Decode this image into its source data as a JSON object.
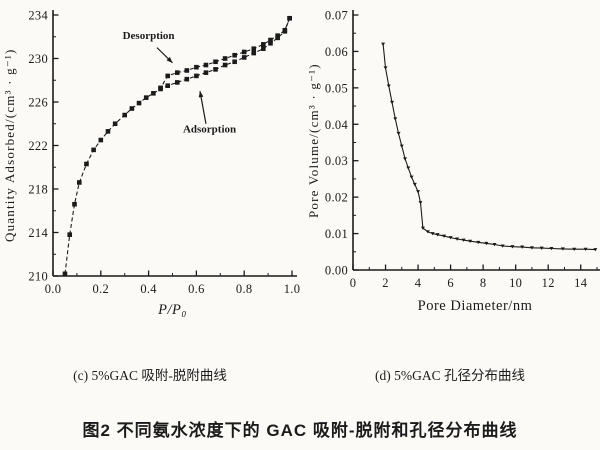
{
  "figure": {
    "panel_c_caption": "(c) 5%GAC 吸附-脱附曲线",
    "panel_d_caption": "(d) 5%GAC 孔径分布曲线",
    "main_caption": "图2  不同氨水浓度下的 GAC 吸附-脱附和孔径分布曲线",
    "ink_color": "#1b1b1b",
    "background_color": "#fbfaf7"
  },
  "chart_data": [
    {
      "type": "line",
      "panel": "c",
      "title": "",
      "xlabel": "P/P₀",
      "ylabel": "Quantity Adsorbed/(cm³ · g⁻¹)",
      "xlim": [
        0,
        1.0
      ],
      "ylim": [
        210,
        234
      ],
      "xticks": [
        0,
        0.2,
        0.4,
        0.6,
        0.8,
        1.0
      ],
      "xtick_labels": [
        "0.0",
        "0.2",
        "0.4",
        "0.6",
        "0.8",
        "1.0"
      ],
      "x_minor_step": 0.1,
      "yticks": [
        210,
        214,
        218,
        222,
        226,
        230,
        234
      ],
      "ytick_labels": [
        "210",
        "214",
        "218",
        "222",
        "226",
        "230",
        "234"
      ],
      "y_minor_step": 2,
      "grid": false,
      "legend_position": "none",
      "annotations": [
        {
          "text": "Desorption",
          "text_x": 0.4,
          "text_y": 231.8,
          "arrow_from_x": 0.435,
          "arrow_from_y": 231.0,
          "arrow_to_x": 0.5,
          "arrow_to_y": 229.6
        },
        {
          "text": "Adsorption",
          "text_x": 0.655,
          "text_y": 223.2,
          "arrow_from_x": 0.64,
          "arrow_from_y": 224.0,
          "arrow_to_x": 0.615,
          "arrow_to_y": 227.0
        }
      ],
      "series": [
        {
          "name": "Adsorption",
          "marker": "square",
          "line": "dashed",
          "x": [
            0.05,
            0.07,
            0.09,
            0.11,
            0.14,
            0.17,
            0.2,
            0.23,
            0.26,
            0.3,
            0.33,
            0.36,
            0.39,
            0.42,
            0.45,
            0.48,
            0.52,
            0.56,
            0.6,
            0.64,
            0.68,
            0.72,
            0.76,
            0.8,
            0.84,
            0.88,
            0.91,
            0.94,
            0.97,
            0.99
          ],
          "y": [
            210.2,
            213.8,
            216.6,
            218.6,
            220.3,
            221.6,
            222.5,
            223.3,
            224.0,
            224.8,
            225.4,
            225.9,
            226.4,
            226.8,
            227.2,
            227.5,
            227.8,
            228.1,
            228.4,
            228.7,
            229.0,
            229.4,
            229.7,
            230.1,
            230.5,
            230.9,
            231.4,
            231.9,
            232.5,
            233.7
          ]
        },
        {
          "name": "Desorption",
          "marker": "square",
          "line": "dashed",
          "x": [
            0.99,
            0.97,
            0.94,
            0.91,
            0.88,
            0.84,
            0.8,
            0.76,
            0.72,
            0.68,
            0.64,
            0.6,
            0.56,
            0.52,
            0.48,
            0.45
          ],
          "y": [
            233.7,
            232.6,
            232.1,
            231.7,
            231.3,
            230.9,
            230.6,
            230.3,
            230.0,
            229.7,
            229.4,
            229.2,
            228.9,
            228.7,
            228.4,
            227.3
          ]
        }
      ]
    },
    {
      "type": "line",
      "panel": "d",
      "title": "",
      "xlabel": "Pore Diameter/nm",
      "ylabel": "Pore Volume/(cm³ · g⁻¹)",
      "xlim": [
        0,
        15
      ],
      "ylim": [
        0,
        0.07
      ],
      "xticks": [
        0,
        2,
        4,
        6,
        8,
        10,
        12,
        14
      ],
      "xtick_labels": [
        "0",
        "2",
        "4",
        "6",
        "8",
        "10",
        "12",
        "14"
      ],
      "x_minor_step": 1,
      "yticks": [
        0,
        0.01,
        0.02,
        0.03,
        0.04,
        0.05,
        0.06,
        0.07
      ],
      "ytick_labels": [
        "0.00",
        "0.01",
        "0.02",
        "0.03",
        "0.04",
        "0.05",
        "0.06",
        "0.07"
      ],
      "y_minor_step": 0.005,
      "grid": false,
      "legend_position": "none",
      "annotations": [],
      "series": [
        {
          "name": "Pore volume distribution",
          "marker": "triangle",
          "line": "solid",
          "x": [
            1.85,
            2.0,
            2.2,
            2.4,
            2.6,
            2.8,
            3.0,
            3.2,
            3.4,
            3.6,
            3.8,
            4.0,
            4.15,
            4.3,
            4.6,
            4.9,
            5.2,
            5.6,
            6.0,
            6.4,
            6.8,
            7.2,
            7.7,
            8.2,
            8.7,
            9.2,
            9.8,
            10.4,
            11.0,
            11.6,
            12.2,
            12.9,
            13.6,
            14.3,
            14.9
          ],
          "y": [
            0.062,
            0.0555,
            0.0505,
            0.046,
            0.0415,
            0.0375,
            0.034,
            0.0305,
            0.028,
            0.0255,
            0.0235,
            0.0215,
            0.0185,
            0.0115,
            0.0105,
            0.01,
            0.0097,
            0.0093,
            0.0089,
            0.0085,
            0.0082,
            0.0079,
            0.0076,
            0.0073,
            0.007,
            0.0066,
            0.0064,
            0.0063,
            0.0061,
            0.006,
            0.0059,
            0.0058,
            0.0057,
            0.0057,
            0.0056
          ]
        }
      ]
    }
  ]
}
